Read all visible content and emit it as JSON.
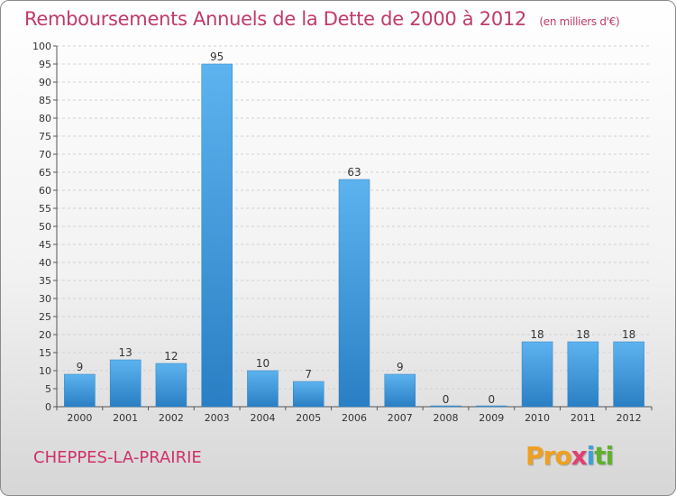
{
  "header": {
    "title": "Remboursements Annuels de la Dette de 2000 à 2012",
    "unit": "(en milliers d'€)"
  },
  "footer": {
    "commune": "CHEPPES-LA-PRAIRIE",
    "logo_parts": [
      "Pro",
      "x",
      "i",
      "ti"
    ]
  },
  "colors": {
    "bar_top": "#5db3ee",
    "bar_bottom": "#2a7fc4",
    "grid": "#d0d0d0",
    "title": "#c03a6a"
  },
  "chart_data": {
    "type": "bar",
    "title": "Remboursements Annuels de la Dette de 2000 à 2012",
    "subtitle": "(en milliers d'€)",
    "categories": [
      "2000",
      "2001",
      "2002",
      "2003",
      "2004",
      "2005",
      "2006",
      "2007",
      "2008",
      "2009",
      "2010",
      "2011",
      "2012"
    ],
    "values": [
      9,
      13,
      12,
      95,
      10,
      7,
      63,
      9,
      0,
      0,
      18,
      18,
      18
    ],
    "ylim": [
      0,
      100
    ],
    "yticks": [
      0,
      5,
      10,
      15,
      20,
      25,
      30,
      35,
      40,
      45,
      50,
      55,
      60,
      65,
      70,
      75,
      80,
      85,
      90,
      95,
      100
    ],
    "grid": true,
    "legend": "none"
  }
}
